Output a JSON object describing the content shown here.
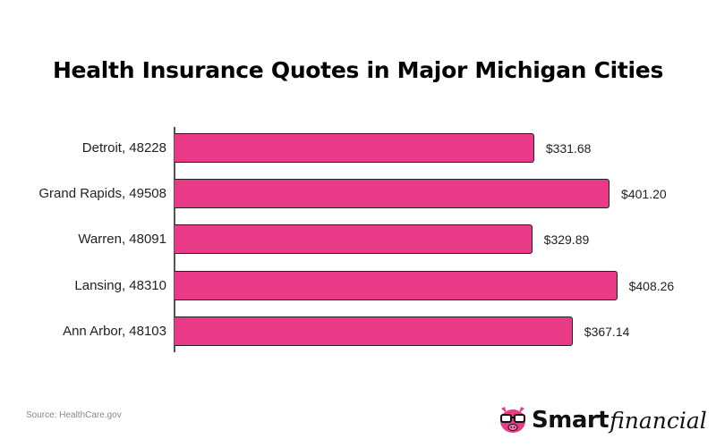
{
  "chart_data": {
    "type": "bar",
    "orientation": "horizontal",
    "title": "Health Insurance Quotes in Major Michigan Cities",
    "categories": [
      "Detroit, 48228",
      "Grand Rapids, 49508",
      "Warren, 48091",
      "Lansing, 48310",
      "Ann Arbor, 48103"
    ],
    "values": [
      331.68,
      401.2,
      329.89,
      408.26,
      367.14
    ],
    "value_labels": [
      "$331.68",
      "$401.20",
      "$329.89",
      "$408.26",
      "$367.14"
    ],
    "xlabel": "",
    "ylabel": "",
    "xlim": [
      0,
      420
    ],
    "grid": false,
    "legend": null,
    "bar_color": "#e83a86"
  },
  "source": "Source: HealthCare.gov",
  "logo": {
    "smart": "Smart",
    "financial": "financial",
    "icon": "pig-with-glasses-icon"
  }
}
